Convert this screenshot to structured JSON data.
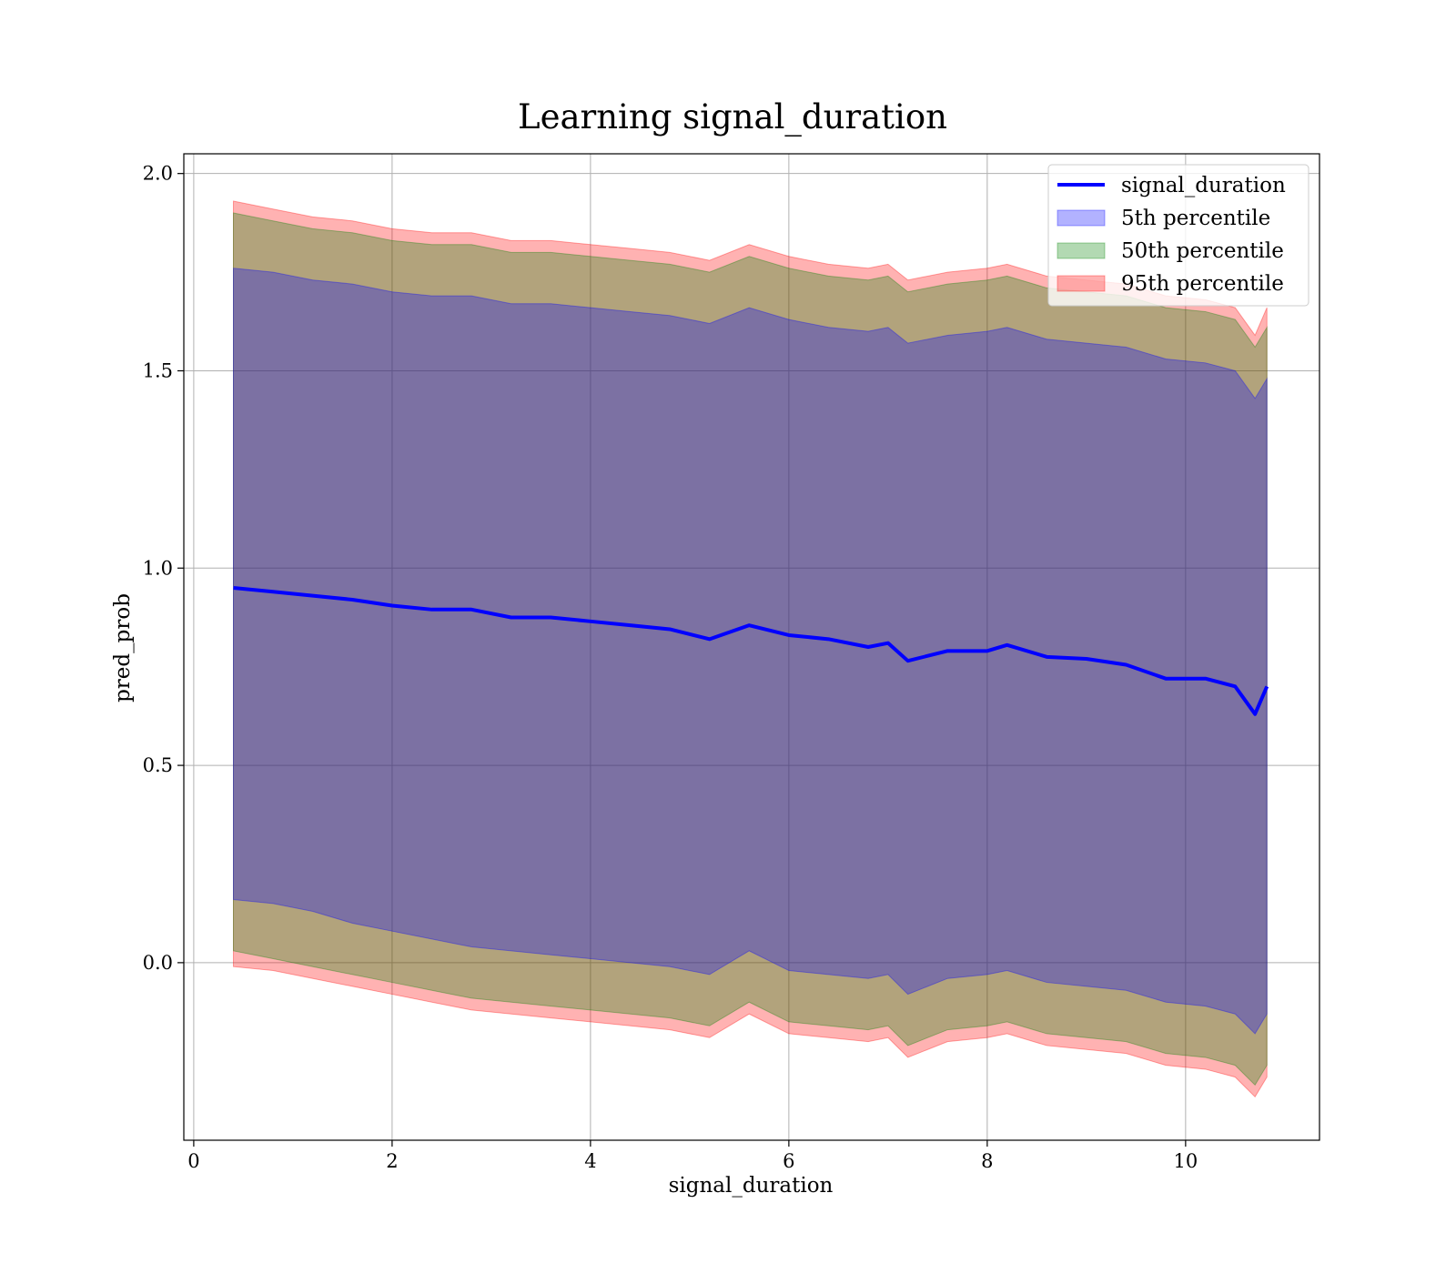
{
  "chart_data": {
    "type": "area",
    "title": "Learning signal_duration",
    "xlabel": "signal_duration",
    "ylabel": "pred_prob",
    "xlim": [
      -0.1,
      11.35
    ],
    "ylim": [
      -0.45,
      2.05
    ],
    "xticks": [
      "0",
      "2",
      "4",
      "6",
      "8",
      "10"
    ],
    "yticks": [
      "0.0",
      "0.5",
      "1.0",
      "1.5",
      "2.0"
    ],
    "grid": true,
    "legend_position": "top-right",
    "legend": [
      "signal_duration",
      "5th percentile",
      "50th percentile",
      "95th percentile"
    ],
    "x": [
      0.4,
      0.8,
      1.2,
      1.6,
      2.0,
      2.4,
      2.8,
      3.2,
      3.6,
      4.0,
      4.4,
      4.8,
      5.2,
      5.6,
      6.0,
      6.4,
      6.8,
      7.0,
      7.2,
      7.6,
      8.0,
      8.2,
      8.6,
      9.0,
      9.4,
      9.8,
      10.2,
      10.5,
      10.7,
      10.82
    ],
    "series": [
      {
        "name": "signal_duration",
        "kind": "line",
        "color": "#0000ff",
        "values": [
          0.95,
          0.94,
          0.93,
          0.92,
          0.905,
          0.895,
          0.895,
          0.875,
          0.875,
          0.865,
          0.855,
          0.845,
          0.82,
          0.855,
          0.83,
          0.82,
          0.8,
          0.81,
          0.765,
          0.79,
          0.79,
          0.805,
          0.775,
          0.77,
          0.755,
          0.72,
          0.72,
          0.7,
          0.63,
          0.7
        ]
      },
      {
        "name": "5th percentile",
        "kind": "band",
        "color": "#0000ff",
        "lower": [
          0.16,
          0.15,
          0.13,
          0.1,
          0.08,
          0.06,
          0.04,
          0.03,
          0.02,
          0.01,
          0.0,
          -0.01,
          -0.03,
          0.03,
          -0.02,
          -0.03,
          -0.04,
          -0.03,
          -0.08,
          -0.04,
          -0.03,
          -0.02,
          -0.05,
          -0.06,
          -0.07,
          -0.1,
          -0.11,
          -0.13,
          -0.18,
          -0.13
        ],
        "upper": [
          1.76,
          1.75,
          1.73,
          1.72,
          1.7,
          1.69,
          1.69,
          1.67,
          1.67,
          1.66,
          1.65,
          1.64,
          1.62,
          1.66,
          1.63,
          1.61,
          1.6,
          1.61,
          1.57,
          1.59,
          1.6,
          1.61,
          1.58,
          1.57,
          1.56,
          1.53,
          1.52,
          1.5,
          1.43,
          1.48
        ]
      },
      {
        "name": "50th percentile",
        "kind": "band",
        "color": "#008000",
        "lower": [
          0.03,
          0.01,
          -0.01,
          -0.03,
          -0.05,
          -0.07,
          -0.09,
          -0.1,
          -0.11,
          -0.12,
          -0.13,
          -0.14,
          -0.16,
          -0.1,
          -0.15,
          -0.16,
          -0.17,
          -0.16,
          -0.21,
          -0.17,
          -0.16,
          -0.15,
          -0.18,
          -0.19,
          -0.2,
          -0.23,
          -0.24,
          -0.26,
          -0.31,
          -0.26
        ],
        "upper": [
          1.9,
          1.88,
          1.86,
          1.85,
          1.83,
          1.82,
          1.82,
          1.8,
          1.8,
          1.79,
          1.78,
          1.77,
          1.75,
          1.79,
          1.76,
          1.74,
          1.73,
          1.74,
          1.7,
          1.72,
          1.73,
          1.74,
          1.71,
          1.7,
          1.69,
          1.66,
          1.65,
          1.63,
          1.56,
          1.61
        ]
      },
      {
        "name": "95th percentile",
        "kind": "band",
        "color": "#ff0000",
        "lower": [
          -0.01,
          -0.02,
          -0.04,
          -0.06,
          -0.08,
          -0.1,
          -0.12,
          -0.13,
          -0.14,
          -0.15,
          -0.16,
          -0.17,
          -0.19,
          -0.13,
          -0.18,
          -0.19,
          -0.2,
          -0.19,
          -0.24,
          -0.2,
          -0.19,
          -0.18,
          -0.21,
          -0.22,
          -0.23,
          -0.26,
          -0.27,
          -0.29,
          -0.34,
          -0.29
        ],
        "upper": [
          1.93,
          1.91,
          1.89,
          1.88,
          1.86,
          1.85,
          1.85,
          1.83,
          1.83,
          1.82,
          1.81,
          1.8,
          1.78,
          1.82,
          1.79,
          1.77,
          1.76,
          1.77,
          1.73,
          1.75,
          1.76,
          1.77,
          1.74,
          1.73,
          1.72,
          1.69,
          1.68,
          1.66,
          1.59,
          1.66
        ]
      }
    ]
  }
}
